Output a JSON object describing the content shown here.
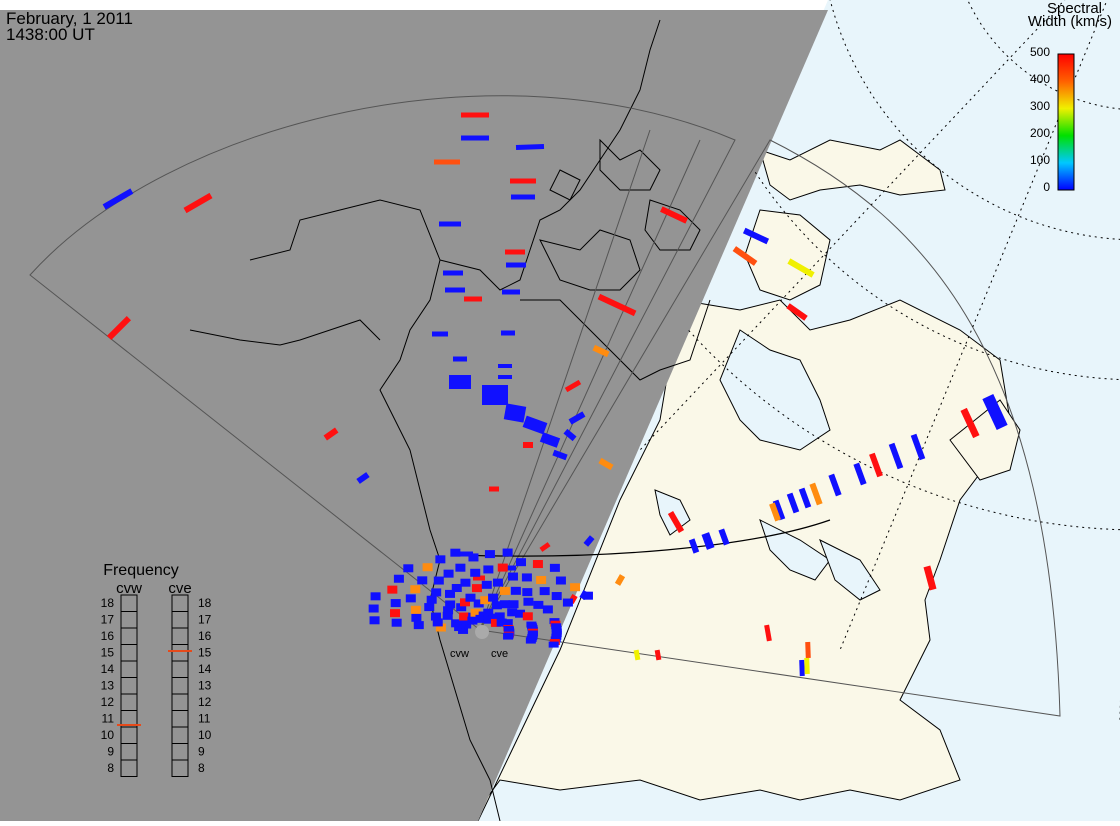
{
  "header": {
    "date": "February, 1 2011",
    "time": "1438:00 UT"
  },
  "colorbar": {
    "title_line1": "Spectral",
    "title_line2": "Width (km/s)",
    "ticks": [
      "500",
      "400",
      "300",
      "200",
      "100",
      "0"
    ]
  },
  "frequency_panel": {
    "title": "Frequency",
    "radars": [
      {
        "name": "cvw",
        "selected_mhz": "10.5",
        "marker_color": "#e64a1a"
      },
      {
        "name": "cve",
        "selected_mhz": "15",
        "marker_color": "#e64a1a"
      }
    ],
    "scale": [
      "18",
      "17",
      "16",
      "15",
      "14",
      "13",
      "12",
      "11",
      "10",
      "9",
      "8"
    ]
  },
  "radar_labels": {
    "west": "cvw",
    "east": "cve"
  },
  "colors": {
    "night": "#949494",
    "ocean_day": "#e8f5fb",
    "land_day": "#faf8e8",
    "red": "#ff1010",
    "orange": "#ff8c10",
    "yellow": "#f0f000",
    "blue": "#1010ff",
    "dark_orange": "#ff5010"
  }
}
